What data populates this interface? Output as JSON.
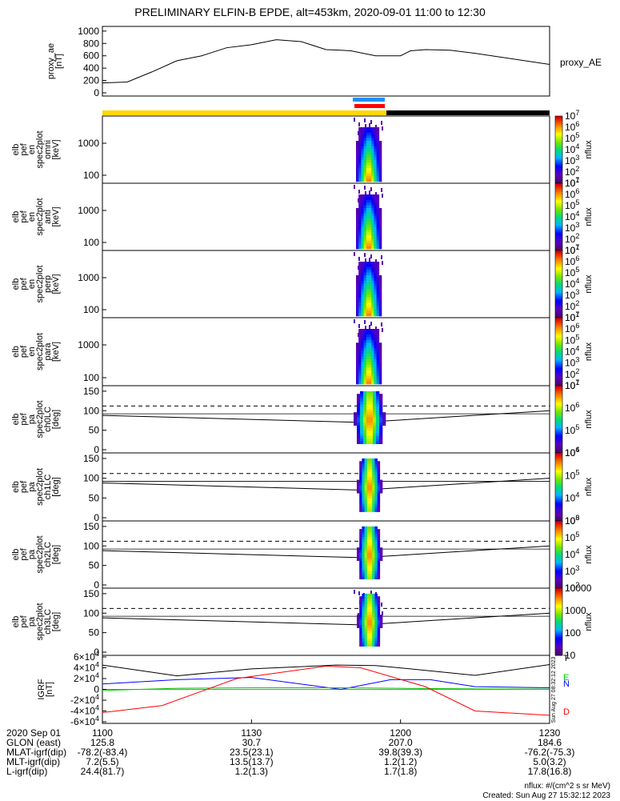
{
  "title": "PRELIMINARY ELFIN-B EPDE, alt=453km, 2020-09-01 11:00 to 12:30",
  "colors": {
    "ae_line": "#000000",
    "sun_bar": "#ffd700",
    "shadow_bar": "#000000",
    "blue_bar": "#1e90ff",
    "red_bar": "#ff0000",
    "grf_N": "#0000ff",
    "grf_E": "#00cc00",
    "grf_D": "#ff0000",
    "grf_total": "#000000"
  },
  "chart_data": [
    {
      "type": "line",
      "ylabel": "proxy_ae [nT]",
      "legend": "proxy_AE",
      "yticks": [
        "0",
        "200",
        "400",
        "600",
        "800",
        "1000"
      ],
      "ylim": [
        0,
        1050
      ],
      "x_minutes": [
        0,
        5,
        10,
        15,
        20,
        25,
        30,
        35,
        40,
        45,
        48,
        50,
        55,
        60,
        62,
        65,
        70,
        75,
        80,
        85,
        90
      ],
      "values": [
        160,
        175,
        340,
        520,
        600,
        730,
        780,
        860,
        830,
        700,
        690,
        680,
        600,
        600,
        680,
        700,
        690,
        640,
        580,
        520,
        460
      ]
    },
    {
      "type": "heatmap",
      "ylabel": "elb pef en spec2plot omni [keV]",
      "yticks": [
        "100",
        "1000"
      ],
      "colorbar_label": "nflux",
      "colorbar_ticks": [
        "10^1",
        "10^2",
        "10^3",
        "10^4",
        "10^5",
        "10^6",
        "10^7"
      ]
    },
    {
      "type": "heatmap",
      "ylabel": "elb pef en spec2plot anti [keV]",
      "yticks": [
        "100",
        "1000"
      ],
      "colorbar_label": "nflux",
      "colorbar_ticks": [
        "10^1",
        "10^2",
        "10^3",
        "10^4",
        "10^5",
        "10^6",
        "10^7"
      ]
    },
    {
      "type": "heatmap",
      "ylabel": "elb pef en spec2plot perp [keV]",
      "yticks": [
        "100",
        "1000"
      ],
      "colorbar_label": "nflux",
      "colorbar_ticks": [
        "10^1",
        "10^2",
        "10^3",
        "10^4",
        "10^5",
        "10^6",
        "10^7"
      ]
    },
    {
      "type": "heatmap",
      "ylabel": "elb pef en spec2plot para [keV]",
      "yticks": [
        "100",
        "1000"
      ],
      "colorbar_label": "nflux",
      "colorbar_ticks": [
        "10^1",
        "10^2",
        "10^3",
        "10^4",
        "10^5",
        "10^6",
        "10^7"
      ]
    },
    {
      "type": "heatmap",
      "ylabel": "elb pef pa spec2plot ch0LC [deg]",
      "yticks": [
        "0",
        "50",
        "100",
        "150"
      ],
      "colorbar_label": "nflux",
      "colorbar_ticks": [
        "10^4",
        "10^5",
        "10^6",
        "10^7"
      ]
    },
    {
      "type": "heatmap",
      "ylabel": "elb pef pa spec2plot ch1LC [deg]",
      "yticks": [
        "0",
        "50",
        "100",
        "150"
      ],
      "colorbar_label": "nflux",
      "colorbar_ticks": [
        "10^3",
        "10^4",
        "10^5",
        "10^6"
      ]
    },
    {
      "type": "heatmap",
      "ylabel": "elb pef pa spec2plot ch2LC [deg]",
      "yticks": [
        "0",
        "50",
        "100",
        "150"
      ],
      "colorbar_label": "nflux",
      "colorbar_ticks": [
        "10^2",
        "10^3",
        "10^4",
        "10^5",
        "10^6"
      ]
    },
    {
      "type": "heatmap",
      "ylabel": "elb pef pa spec2plot ch3LC [deg]",
      "yticks": [
        "0",
        "50",
        "100",
        "150"
      ],
      "colorbar_label": "nflux",
      "colorbar_ticks": [
        "10",
        "100",
        "1000",
        "10000"
      ]
    },
    {
      "type": "line",
      "ylabel": "IGRF [nT]",
      "yticks": [
        "-6×10^4",
        "-4×10^4",
        "-2×10^4",
        "0",
        "2×10^4",
        "4×10^4",
        "6×10^4"
      ],
      "ylim": [
        -60000,
        60000
      ],
      "legend": [
        "T",
        "E",
        "N",
        "D"
      ],
      "series": [
        {
          "name": "T",
          "x_minutes": [
            0,
            15,
            30,
            47,
            55,
            62,
            75,
            90
          ],
          "values": [
            45000,
            25000,
            38000,
            45000,
            44000,
            38000,
            26000,
            46000
          ]
        },
        {
          "name": "N",
          "x_minutes": [
            0,
            15,
            30,
            48,
            58,
            66,
            75,
            90
          ],
          "values": [
            10000,
            18000,
            22000,
            0,
            18000,
            18000,
            5000,
            3000
          ]
        },
        {
          "name": "E",
          "x_minutes": [
            0,
            15,
            30,
            48,
            60,
            75,
            90
          ],
          "values": [
            -2000,
            2000,
            3000,
            3000,
            2000,
            1000,
            500
          ]
        },
        {
          "name": "D",
          "x_minutes": [
            0,
            12,
            27,
            45,
            52,
            65,
            75,
            90
          ],
          "values": [
            -43000,
            -30000,
            20000,
            43000,
            40000,
            5000,
            -40000,
            -48000
          ]
        }
      ]
    }
  ],
  "side_stamp": "Sun Aug 27 08:32:12 2023",
  "ephemeris": {
    "rows": [
      {
        "label": "2020 Sep 01",
        "values": [
          "1100",
          "1130",
          "1200",
          "1230"
        ]
      },
      {
        "label": "GLON (east)",
        "values": [
          "125.8",
          "30.7",
          "207.0",
          "184.6"
        ]
      },
      {
        "label": "MLAT-igrf(dip)",
        "values": [
          "-78.2(-83.4)",
          "23.5(23.1)",
          "39.8(39.3)",
          "-76.2(-75.3)"
        ]
      },
      {
        "label": "MLT-igrf(dip)",
        "values": [
          "7.2(5.5)",
          "13.5(13.7)",
          "1.2(1.2)",
          "5.0(3.2)"
        ]
      },
      {
        "label": "L-igrf(dip)",
        "values": [
          "24.4(81.7)",
          "1.2(1.3)",
          "1.7(1.8)",
          "17.8(16.8)"
        ]
      }
    ]
  },
  "footer": {
    "units": "nflux: #/(cm^2 s sr MeV)",
    "created": "Created: Sun Aug 27 15:32:12 2023"
  }
}
